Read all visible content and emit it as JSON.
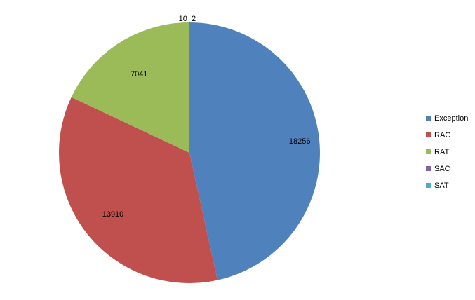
{
  "chart_data": {
    "type": "pie",
    "title": "",
    "categories": [
      "Exception",
      "RAC",
      "RAT",
      "SAC",
      "SAT"
    ],
    "values": [
      18256,
      13910,
      7041,
      10,
      2
    ],
    "colors": [
      "#4F81BD",
      "#C0504D",
      "#9BBB59",
      "#8064A2",
      "#4BACC6"
    ],
    "data_labels": [
      "18256",
      "13910",
      "7041",
      "10",
      "2"
    ],
    "legend_position": "right",
    "start_angle": "12 o'clock, clockwise"
  }
}
